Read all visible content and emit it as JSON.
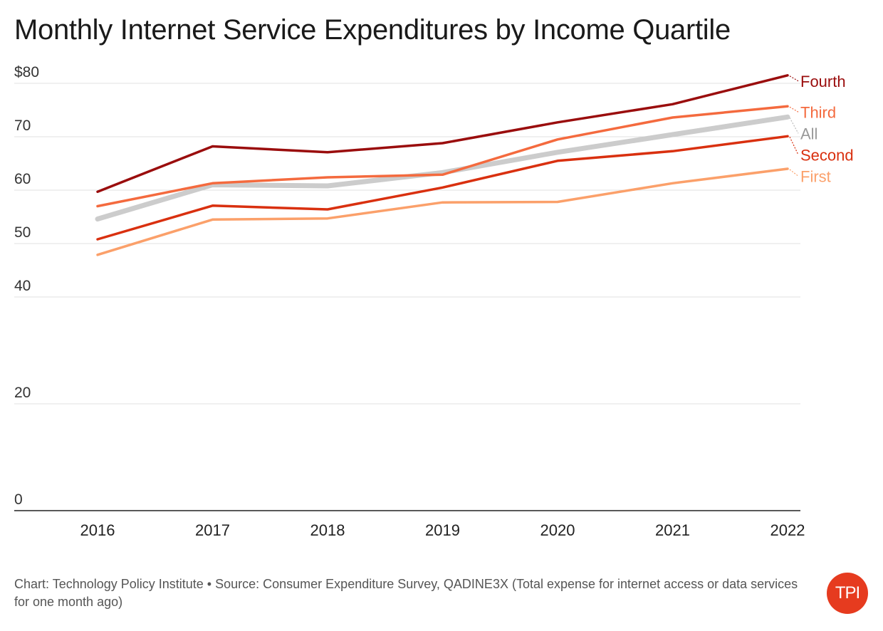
{
  "title": "Monthly Internet Service Expenditures by Income Quartile",
  "footer": "Chart: Technology Policy Institute • Source: Consumer Expenditure Survey, QADINE3X (Total expense for internet access or data services for one month ago)",
  "logo": {
    "text": "TPI",
    "color": "#e63b1f"
  },
  "chart_data": {
    "type": "line",
    "title": "Monthly Internet Service Expenditures by Income Quartile",
    "xlabel": "",
    "ylabel": "",
    "x": [
      "2016",
      "2017",
      "2018",
      "2019",
      "2020",
      "2021",
      "2022"
    ],
    "ylim": [
      0,
      80
    ],
    "y_ticks": [
      {
        "value": 0,
        "label": "0"
      },
      {
        "value": 20,
        "label": "20"
      },
      {
        "value": 40,
        "label": "40"
      },
      {
        "value": 50,
        "label": "50"
      },
      {
        "value": 60,
        "label": "60"
      },
      {
        "value": 70,
        "label": "70"
      },
      {
        "value": 80,
        "label": "$80"
      }
    ],
    "grid": "horizontal",
    "legend": "direct labels at right",
    "series": [
      {
        "name": "All",
        "color": "#cccccc",
        "values": [
          54.6,
          61.0,
          60.8,
          63.3,
          67.1,
          70.4,
          73.7
        ]
      },
      {
        "name": "First",
        "color": "#fba06a",
        "values": [
          47.9,
          54.5,
          54.7,
          57.7,
          57.8,
          61.3,
          64.0
        ]
      },
      {
        "name": "Second",
        "color": "#d9300f",
        "values": [
          50.8,
          57.1,
          56.4,
          60.5,
          65.5,
          67.3,
          70.1
        ]
      },
      {
        "name": "Third",
        "color": "#f46a3e",
        "values": [
          57.0,
          61.3,
          62.4,
          62.9,
          69.5,
          73.6,
          75.7
        ]
      },
      {
        "name": "Fourth",
        "color": "#9a0d0d",
        "values": [
          59.7,
          68.2,
          67.1,
          68.8,
          72.7,
          76.1,
          81.5
        ]
      }
    ]
  }
}
